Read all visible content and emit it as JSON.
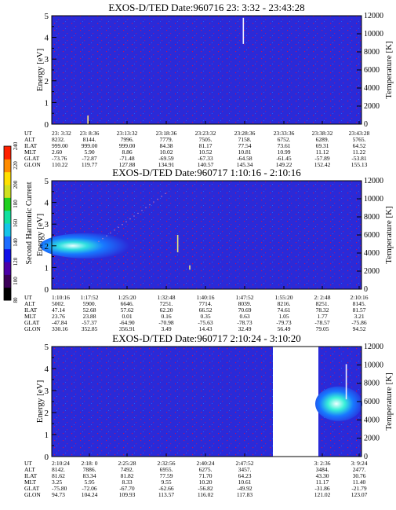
{
  "colorbar": {
    "label": "Second Harmonic Current",
    "ticks": [
      "80",
      "100",
      "120",
      "140",
      "160",
      "180",
      "200",
      "220",
      "240"
    ],
    "colors": [
      "#000000",
      "#3b0058",
      "#4b00a8",
      "#1010e8",
      "#1c6cff",
      "#15c4e8",
      "#11e0a0",
      "#20d020",
      "#cfe020",
      "#ffe000",
      "#ff8c00",
      "#ff2000"
    ]
  },
  "chart_data": [
    {
      "type": "heatmap",
      "title": "EXOS-D/TED  Date:960716  23: 3:32 - 23:43:28",
      "ylabel": "Energy [eV]",
      "y2label": "Temperature [K]",
      "ylim": [
        0,
        5
      ],
      "yticks": [
        "0",
        "1",
        "2",
        "3",
        "4",
        "5"
      ],
      "y2lim": [
        0,
        12000
      ],
      "y2ticks": [
        "0",
        "2000",
        "4000",
        "6000",
        "8000",
        "10000",
        "12000"
      ],
      "spikes": [
        {
          "time": "23:28:14",
          "ylow": 3.7,
          "yhigh": 4.9,
          "color": "#f0f0ff"
        },
        {
          "time": "23: 8:12",
          "ylow": 0.0,
          "yhigh": 0.4,
          "color": "#ffe880"
        }
      ],
      "table": {
        "row_labels": [
          "UT",
          "ALT",
          "ILAT",
          "MLT",
          "GLAT",
          "GLON"
        ],
        "columns": [
          [
            "23: 3:32",
            "8232.",
            "999.00",
            "2.60",
            "-73.76",
            "110.22"
          ],
          [
            "23: 8:36",
            "8144.",
            "999.00",
            "5.90",
            "-72.87",
            "119.77"
          ],
          [
            "23:13:32",
            "7996.",
            "999.00",
            "8.86",
            "-71.48",
            "127.88"
          ],
          [
            "23:18:36",
            "7779.",
            "84.38",
            "10.02",
            "-69.59",
            "134.91"
          ],
          [
            "23:23:32",
            "7505.",
            "81.17",
            "10.52",
            "-67.33",
            "140.57"
          ],
          [
            "23:28:36",
            "7158.",
            "77.54",
            "10.81",
            "-64.58",
            "145.34"
          ],
          [
            "23:33:36",
            "6752.",
            "73.61",
            "10.99",
            "-61.45",
            "149.22"
          ],
          [
            "23:38:32",
            "6289.",
            "69.31",
            "11.12",
            "-57.89",
            "152.42"
          ],
          [
            "23:43:28",
            "5765.",
            "64.52",
            "11.22",
            "-53.81",
            "155.13"
          ]
        ]
      }
    },
    {
      "type": "heatmap",
      "title": "EXOS-D/TED   Date:960717   1:10:16 - 2:10:16",
      "ylabel": "Energy [eV]",
      "y2label": "Temperature [K]",
      "ylim": [
        0,
        5
      ],
      "yticks": [
        "0",
        "1",
        "2",
        "3",
        "4",
        "5"
      ],
      "y2lim": [
        0,
        12000
      ],
      "y2ticks": [
        "0",
        "2000",
        "4000",
        "6000",
        "8000",
        "10000",
        "12000"
      ],
      "spikes": [
        {
          "time": "1:34:40",
          "ylow": 1.7,
          "yhigh": 2.5,
          "color": "#e8e880"
        },
        {
          "time": "1:37:00",
          "ylow": 0.9,
          "yhigh": 1.1,
          "color": "#e8e880"
        }
      ],
      "table": {
        "row_labels": [
          "UT",
          "ALT",
          "ILAT",
          "MLT",
          "GLAT",
          "GLON"
        ],
        "columns": [
          [
            "1:10:16",
            "5002.",
            "47.14",
            "23.76",
            "-47.84",
            "330.16"
          ],
          [
            "1:17:52",
            "5900.",
            "52.68",
            "23.88",
            "-57.37",
            "352.85"
          ],
          [
            "1:25:20",
            "6646.",
            "57.62",
            "0.01",
            "-64.90",
            "356.91"
          ],
          [
            "1:32:48",
            "7251.",
            "62.20",
            "0.16",
            "-70.98",
            "3.49"
          ],
          [
            "1:40:16",
            "7714.",
            "66.52",
            "0.35",
            "-75.63",
            "14.43"
          ],
          [
            "1:47:52",
            "8039.",
            "70.69",
            "0.63",
            "-78.73",
            "32.49"
          ],
          [
            "1:55:20",
            "8216.",
            "74.61",
            "1.05",
            "-79.73",
            "56.49"
          ],
          [
            "2: 2:48",
            "8251.",
            "78.32",
            "1.77",
            "-78.57",
            "79.05"
          ],
          [
            "2:10:16",
            "8145.",
            "81.57",
            "3.21",
            "-75.86",
            "94.52"
          ]
        ]
      }
    },
    {
      "type": "heatmap",
      "title": "EXOS-D/TED   Date:960717   2:10:24 - 3:10:20",
      "ylabel": "Energy [eV]",
      "y2label": "Temperature [K]",
      "ylim": [
        0,
        5
      ],
      "yticks": [
        "0",
        "1",
        "2",
        "3",
        "4",
        "5"
      ],
      "y2lim": [
        0,
        12000
      ],
      "y2ticks": [
        "0",
        "2000",
        "4000",
        "6000",
        "8000",
        "10000",
        "12000"
      ],
      "spikes": [
        {
          "time": "3: 6:30",
          "ylow": 2.6,
          "yhigh": 4.2,
          "color": "#f0f0ff"
        }
      ],
      "table": {
        "row_labels": [
          "UT",
          "ALT",
          "ILAT",
          "MLT",
          "GLAT",
          "GLON"
        ],
        "columns": [
          [
            "2:10:24",
            "8142.",
            "81.62",
            "3.25",
            "-75.80",
            "94.73"
          ],
          [
            "2:18: 0",
            "7886.",
            "83.34",
            "5.95",
            "-72.06",
            "104.24"
          ],
          [
            "2:25:28",
            "7492.",
            "81.82",
            "8.33",
            "-67.70",
            "109.93"
          ],
          [
            "2:32:56",
            "6955.",
            "77.59",
            "9.55",
            "-62.66",
            "113.57"
          ],
          [
            "2:40:24",
            "6275.",
            "71.70",
            "10.20",
            "-56.82",
            "116.02"
          ],
          [
            "2:47:52",
            "3457.",
            "64.23",
            "10.61",
            "-49.92",
            "117.83"
          ],
          [
            "",
            "",
            "",
            "",
            "",
            ""
          ],
          [
            "3: 2:36",
            "3484.",
            "43.30",
            "11.17",
            "-31.86",
            "121.02"
          ],
          [
            "3: 9:24",
            "2477.",
            "30.76",
            "11.40",
            "-21.79",
            "123.07"
          ]
        ]
      }
    }
  ]
}
